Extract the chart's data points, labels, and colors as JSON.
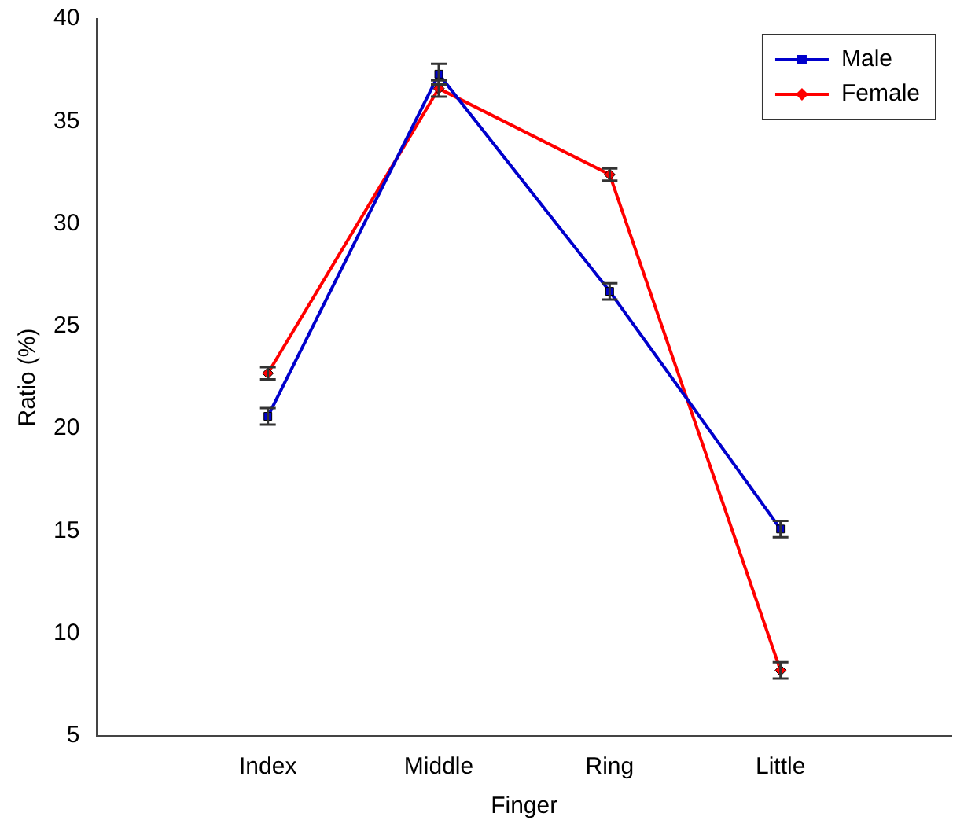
{
  "chart_data": {
    "type": "line",
    "xlabel": "Finger",
    "ylabel": "Ratio (%)",
    "categories": [
      "Index",
      "Middle",
      "Ring",
      "Little"
    ],
    "ylim": [
      5,
      40
    ],
    "yticks": [
      5,
      10,
      15,
      20,
      25,
      30,
      35,
      40
    ],
    "grid": false,
    "legend": "top right",
    "line_style": "solid",
    "series": [
      {
        "name": "Male",
        "color": "#0000cc",
        "marker": "square",
        "values": [
          20.6,
          37.3,
          26.7,
          15.1
        ],
        "errors": [
          0.4,
          0.5,
          0.4,
          0.4
        ]
      },
      {
        "name": "Female",
        "color": "#ff0000",
        "marker": "diamond",
        "values": [
          22.7,
          36.6,
          32.4,
          8.2
        ],
        "errors": [
          0.3,
          0.4,
          0.3,
          0.4
        ]
      }
    ]
  }
}
